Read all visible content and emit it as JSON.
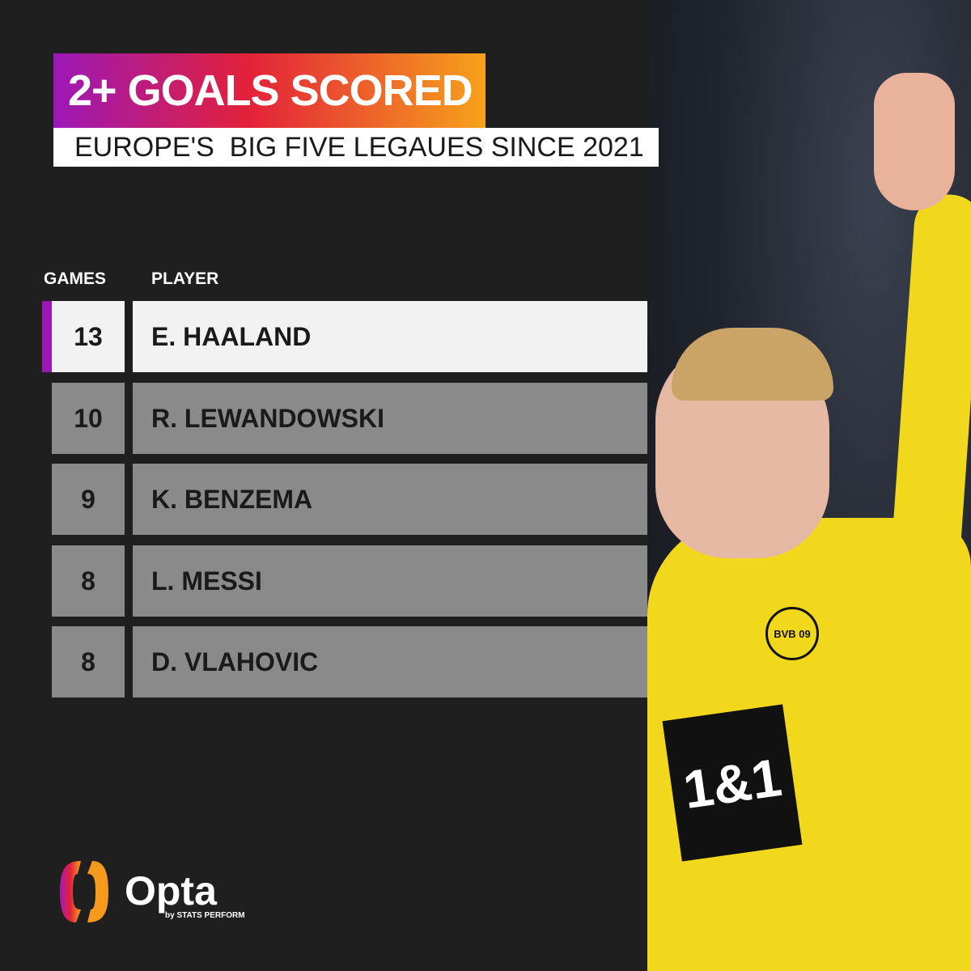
{
  "title": "2+ GOALS SCORED",
  "subtitle": "EUROPE'S  BIG FIVE LEGAUES SINCE 2021",
  "colors": {
    "background": "#1f1f1f",
    "gradient_start": "#9b18b8",
    "gradient_mid": "#e3213a",
    "gradient_end": "#f7a21b",
    "highlight_row": "#f2f2f2",
    "row": "#8a8a8a",
    "accent": "#9b18b8"
  },
  "chart_data": {
    "type": "table",
    "columns": [
      "GAMES",
      "PLAYER"
    ],
    "rows": [
      {
        "games": "13",
        "player": "E. HAALAND",
        "highlighted": true
      },
      {
        "games": "10",
        "player": "R. LEWANDOWSKI",
        "highlighted": false
      },
      {
        "games": "9",
        "player": "K. BENZEMA",
        "highlighted": false
      },
      {
        "games": "8",
        "player": "L. MESSI",
        "highlighted": false
      },
      {
        "games": "8",
        "player": "D. VLAHOVIC",
        "highlighted": false
      }
    ]
  },
  "branding": {
    "name": "Opta",
    "tagline": "by STATS PERFORM"
  },
  "photo": {
    "sponsor": "1&1",
    "badge": "BVB 09"
  }
}
